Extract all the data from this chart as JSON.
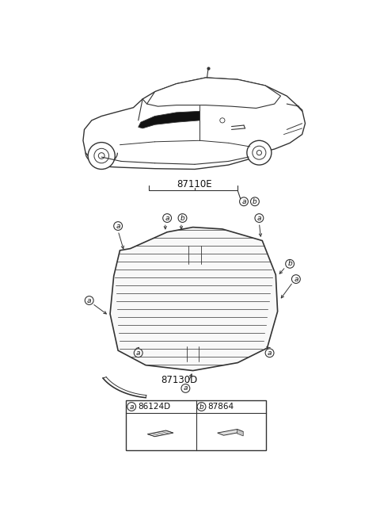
{
  "bg_color": "#ffffff",
  "line_color": "#333333",
  "dark_color": "#111111",
  "part_code_a": "86124D",
  "part_code_b": "87864",
  "diagram_label_1": "87110E",
  "diagram_label_2": "87130D",
  "fig_width": 4.8,
  "fig_height": 6.56,
  "car_scale": 1.0,
  "glass_lines": 18
}
